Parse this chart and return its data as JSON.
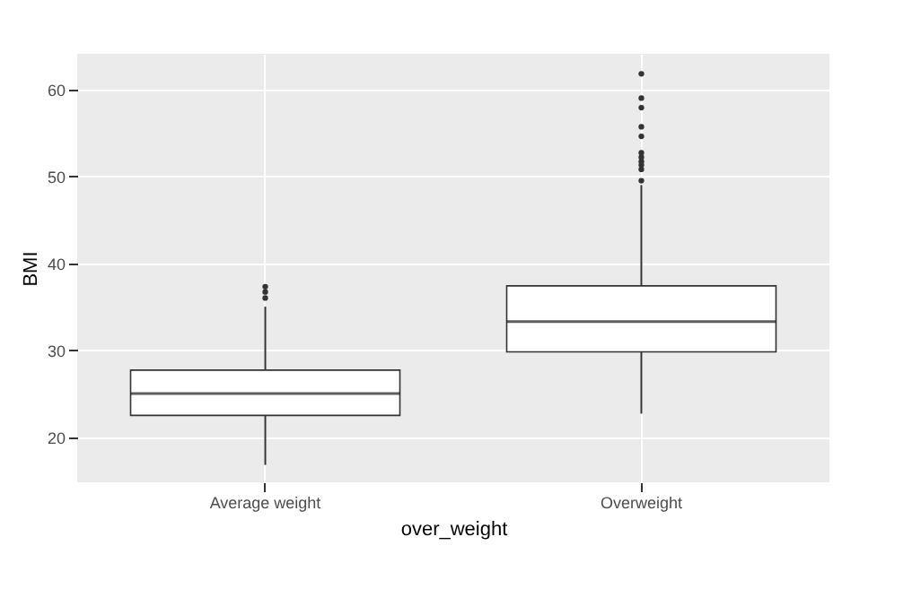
{
  "chart_data": {
    "type": "box",
    "xlabel": "over_weight",
    "ylabel": "BMI",
    "categories": [
      "Average weight",
      "Overweight"
    ],
    "boxes": [
      {
        "low": 16.8,
        "q1": 22.5,
        "median": 25,
        "q3": 27.7,
        "high": 35,
        "outliers": [
          36,
          36.7,
          37.3
        ]
      },
      {
        "low": 22.7,
        "q1": 29.8,
        "median": 33.3,
        "q3": 37.4,
        "high": 49,
        "outliers": [
          49.5,
          50.8,
          51.3,
          51.7,
          52.2,
          52.7,
          54.6,
          55.7,
          57.9,
          59,
          61.8
        ]
      }
    ],
    "ylim": [
      14.8,
      64.1
    ],
    "yticks": [
      20,
      30,
      40,
      50,
      60
    ],
    "grid": true
  }
}
